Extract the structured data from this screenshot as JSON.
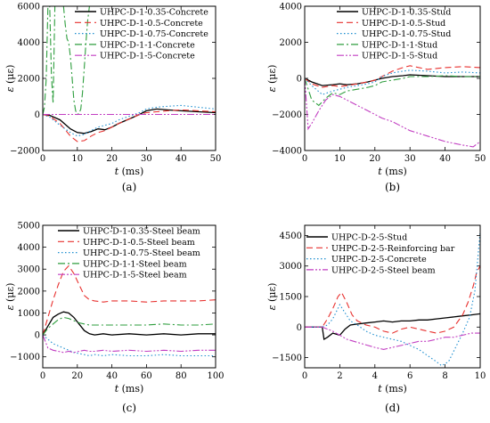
{
  "chart_data": [
    {
      "type": "line",
      "panel_label": "(a)",
      "xlabel_var": "t",
      "xlabel_unit": " (ms)",
      "ylabel_var": "ε",
      "ylabel_unit": " (με)",
      "xlim": [
        0,
        50
      ],
      "ylim": [
        -2000,
        6000
      ],
      "xticks": [
        0,
        10,
        20,
        30,
        40,
        50
      ],
      "yticks": [
        -2000,
        0,
        2000,
        4000,
        6000
      ],
      "legend_position": "top-right",
      "series": [
        {
          "name": "UHPC-D-1-0.35-Concrete",
          "color": "#000000",
          "dash": "solid",
          "x": [
            0,
            2,
            5,
            8,
            10,
            12,
            14,
            16,
            18,
            20,
            22,
            25,
            28,
            30,
            33,
            36,
            40,
            45,
            50
          ],
          "y": [
            0,
            -50,
            -300,
            -800,
            -1000,
            -1050,
            -950,
            -800,
            -850,
            -700,
            -500,
            -250,
            0,
            200,
            300,
            250,
            200,
            150,
            100
          ]
        },
        {
          "name": "UHPC-D-1-0.5-Concrete",
          "color": "#e8312f",
          "dash": "dash",
          "x": [
            0,
            2,
            5,
            8,
            10,
            12,
            14,
            16,
            18,
            20,
            22,
            25,
            28,
            30,
            33,
            36,
            40,
            45,
            50
          ],
          "y": [
            0,
            -100,
            -500,
            -1200,
            -1500,
            -1450,
            -1200,
            -1000,
            -900,
            -700,
            -500,
            -250,
            0,
            100,
            150,
            200,
            250,
            200,
            150
          ]
        },
        {
          "name": "UHPC-D-1-0.75-Concrete",
          "color": "#1f8fd0",
          "dash": "dot",
          "x": [
            0,
            2,
            5,
            8,
            10,
            12,
            14,
            16,
            18,
            20,
            22,
            25,
            28,
            30,
            33,
            36,
            40,
            45,
            50
          ],
          "y": [
            0,
            -150,
            -600,
            -1000,
            -1200,
            -1100,
            -900,
            -700,
            -600,
            -500,
            -300,
            -100,
            100,
            300,
            400,
            450,
            500,
            400,
            300
          ]
        },
        {
          "name": "UHPC-D-1-1-Concrete",
          "color": "#2e9e3e",
          "dash": "dashdot",
          "x": [
            0,
            0.5,
            1,
            1.5,
            2,
            2.5,
            3,
            3.5,
            4,
            4.5,
            5,
            5.5,
            6,
            6.5,
            7,
            7.5,
            8,
            8.5,
            9,
            9.5,
            10,
            10.5,
            11,
            11.5,
            12,
            12.5,
            13,
            13.5,
            14
          ],
          "y": [
            0,
            400,
            2000,
            6000,
            6000,
            2200,
            600,
            6000,
            6000,
            6000,
            6000,
            6000,
            6000,
            5000,
            4200,
            4000,
            3200,
            2000,
            800,
            200,
            0,
            50,
            300,
            1200,
            2600,
            4000,
            5200,
            6000,
            6000
          ]
        },
        {
          "name": "UHPC-D-1-5-Concrete",
          "color": "#c23fc2",
          "dash": "dashdotdot",
          "x": [
            0,
            10,
            20,
            30,
            40,
            50
          ],
          "y": [
            0,
            0,
            0,
            0,
            0,
            0
          ]
        }
      ]
    },
    {
      "type": "line",
      "panel_label": "(b)",
      "xlabel_var": "t",
      "xlabel_unit": " (ms)",
      "ylabel_var": "ε",
      "ylabel_unit": " (με)",
      "xlim": [
        0,
        50
      ],
      "ylim": [
        -4000,
        4000
      ],
      "xticks": [
        0,
        10,
        20,
        30,
        40,
        50
      ],
      "yticks": [
        -4000,
        -2000,
        0,
        2000,
        4000
      ],
      "legend_position": "top-right",
      "series": [
        {
          "name": "UHPC-D-1-0.35-Stud",
          "color": "#000000",
          "dash": "solid",
          "x": [
            0,
            2,
            5,
            8,
            10,
            12,
            15,
            18,
            20,
            22,
            25,
            28,
            30,
            35,
            40,
            45,
            50
          ],
          "y": [
            0,
            -200,
            -400,
            -350,
            -300,
            -350,
            -300,
            -200,
            -100,
            0,
            100,
            150,
            200,
            150,
            100,
            100,
            100
          ]
        },
        {
          "name": "UHPC-D-1-0.5-Stud",
          "color": "#e8312f",
          "dash": "dash",
          "x": [
            0,
            2,
            5,
            8,
            10,
            12,
            15,
            18,
            20,
            22,
            25,
            28,
            30,
            35,
            40,
            45,
            50
          ],
          "y": [
            0,
            -300,
            -500,
            -400,
            -450,
            -400,
            -300,
            -200,
            -100,
            100,
            400,
            600,
            700,
            500,
            600,
            650,
            600
          ]
        },
        {
          "name": "UHPC-D-1-0.75-Stud",
          "color": "#1f8fd0",
          "dash": "dot",
          "x": [
            0,
            2,
            5,
            8,
            10,
            12,
            15,
            18,
            20,
            22,
            25,
            28,
            30,
            35,
            40,
            45,
            50
          ],
          "y": [
            0,
            -400,
            -900,
            -700,
            -600,
            -500,
            -400,
            -300,
            -200,
            100,
            300,
            400,
            450,
            400,
            300,
            350,
            300
          ]
        },
        {
          "name": "UHPC-D-1-1-Stud",
          "color": "#2e9e3e",
          "dash": "dashdot",
          "x": [
            0,
            2,
            4,
            6,
            8,
            10,
            12,
            15,
            18,
            20,
            22,
            25,
            28,
            30,
            35,
            40,
            45,
            50
          ],
          "y": [
            0,
            -1200,
            -1500,
            -1100,
            -800,
            -900,
            -700,
            -600,
            -500,
            -400,
            -200,
            -100,
            0,
            100,
            100,
            150,
            100,
            100
          ]
        },
        {
          "name": "UHPC-D-1-5-Stud",
          "color": "#c23fc2",
          "dash": "dashdotdot",
          "x": [
            0,
            1,
            2,
            4,
            6,
            8,
            10,
            12,
            15,
            18,
            20,
            22,
            25,
            28,
            30,
            35,
            40,
            45,
            48,
            50
          ],
          "y": [
            0,
            -2800,
            -2500,
            -1800,
            -1200,
            -900,
            -1000,
            -1200,
            -1500,
            -1800,
            -2000,
            -2200,
            -2400,
            -2700,
            -2900,
            -3200,
            -3500,
            -3700,
            -3800,
            -3500
          ]
        }
      ]
    },
    {
      "type": "line",
      "panel_label": "(c)",
      "xlabel_var": "t",
      "xlabel_unit": " (ms)",
      "ylabel_var": "ε",
      "ylabel_unit": " (με)",
      "xlim": [
        0,
        100
      ],
      "ylim": [
        -1500,
        5000
      ],
      "xticks": [
        0,
        20,
        40,
        60,
        80,
        100
      ],
      "yticks": [
        -1000,
        0,
        1000,
        2000,
        3000,
        4000,
        5000
      ],
      "legend_position": "top-right",
      "series": [
        {
          "name": "UHPC-D-1-0.35-Steel beam",
          "color": "#000000",
          "dash": "solid",
          "x": [
            0,
            3,
            6,
            9,
            12,
            15,
            18,
            21,
            24,
            27,
            30,
            35,
            40,
            50,
            60,
            70,
            80,
            90,
            100
          ],
          "y": [
            0,
            400,
            800,
            950,
            1050,
            1000,
            800,
            500,
            200,
            50,
            0,
            50,
            0,
            50,
            0,
            50,
            0,
            50,
            50
          ]
        },
        {
          "name": "UHPC-D-1-0.5-Steel beam",
          "color": "#e8312f",
          "dash": "dash",
          "x": [
            0,
            3,
            6,
            9,
            12,
            15,
            18,
            21,
            24,
            27,
            30,
            35,
            40,
            50,
            60,
            70,
            80,
            90,
            100
          ],
          "y": [
            0,
            800,
            1600,
            2300,
            2900,
            3150,
            2800,
            2300,
            1800,
            1600,
            1550,
            1500,
            1550,
            1550,
            1500,
            1550,
            1550,
            1550,
            1600
          ]
        },
        {
          "name": "UHPC-D-1-0.75-Steel beam",
          "color": "#1f8fd0",
          "dash": "dot",
          "x": [
            0,
            3,
            6,
            9,
            12,
            15,
            18,
            21,
            24,
            27,
            30,
            35,
            40,
            50,
            60,
            70,
            80,
            90,
            100
          ],
          "y": [
            0,
            -200,
            -400,
            -500,
            -600,
            -700,
            -800,
            -850,
            -900,
            -950,
            -900,
            -950,
            -900,
            -950,
            -950,
            -900,
            -950,
            -950,
            -950
          ]
        },
        {
          "name": "UHPC-D-1-1-Steel beam",
          "color": "#2e9e3e",
          "dash": "dashdot",
          "x": [
            0,
            3,
            6,
            9,
            12,
            15,
            18,
            21,
            24,
            27,
            30,
            35,
            40,
            50,
            60,
            70,
            80,
            90,
            100
          ],
          "y": [
            0,
            300,
            500,
            700,
            800,
            750,
            650,
            550,
            500,
            450,
            450,
            450,
            450,
            450,
            450,
            500,
            450,
            450,
            500
          ]
        },
        {
          "name": "UHPC-D-1-5-Steel beam",
          "color": "#c23fc2",
          "dash": "dashdotdot",
          "x": [
            0,
            3,
            6,
            9,
            12,
            15,
            18,
            21,
            24,
            27,
            30,
            35,
            40,
            50,
            60,
            70,
            80,
            90,
            100
          ],
          "y": [
            0,
            -600,
            -700,
            -750,
            -800,
            -750,
            -800,
            -750,
            -700,
            -750,
            -750,
            -700,
            -750,
            -700,
            -750,
            -700,
            -750,
            -700,
            -700
          ]
        }
      ]
    },
    {
      "type": "line",
      "panel_label": "(d)",
      "xlabel_var": "t",
      "xlabel_unit": " (ms)",
      "ylabel_var": "ε",
      "ylabel_unit": " (με)",
      "xlim": [
        0,
        10
      ],
      "ylim": [
        -2000,
        5000
      ],
      "xticks": [
        0,
        2,
        4,
        6,
        8,
        10
      ],
      "yticks": [
        -1500,
        0,
        1500,
        3000,
        4500
      ],
      "legend_position": "top-right",
      "series": [
        {
          "name": "UHPC-D-2-5-Stud",
          "color": "#000000",
          "dash": "solid",
          "x": [
            0,
            0.5,
            1.0,
            1.1,
            1.3,
            1.6,
            2.0,
            2.3,
            2.6,
            3.0,
            3.5,
            4.0,
            4.5,
            5.0,
            5.5,
            6.0,
            6.5,
            7.0,
            7.5,
            8.0,
            8.5,
            9.0,
            9.5,
            10.0
          ],
          "y": [
            0,
            0,
            0,
            -600,
            -500,
            -300,
            -400,
            -100,
            100,
            150,
            200,
            250,
            300,
            250,
            300,
            300,
            350,
            350,
            400,
            450,
            500,
            550,
            600,
            650
          ]
        },
        {
          "name": "UHPC-D-2-5-Reinforcing bar",
          "color": "#e8312f",
          "dash": "dash",
          "x": [
            0,
            0.5,
            1.0,
            1.3,
            1.6,
            1.9,
            2.1,
            2.4,
            2.7,
            3.0,
            3.5,
            4.0,
            4.5,
            5.0,
            5.5,
            6.0,
            6.5,
            7.0,
            7.5,
            8.0,
            8.5,
            9.0,
            9.3,
            9.6,
            9.8,
            10.0
          ],
          "y": [
            0,
            0,
            0,
            400,
            900,
            1500,
            1700,
            1200,
            600,
            300,
            100,
            0,
            -200,
            -300,
            -100,
            0,
            -100,
            -200,
            -300,
            -200,
            0,
            600,
            1200,
            2000,
            2700,
            3000
          ]
        },
        {
          "name": "UHPC-D-2-5-Concrete",
          "color": "#1f8fd0",
          "dash": "dot",
          "x": [
            0,
            0.5,
            1.0,
            1.3,
            1.6,
            2.0,
            2.3,
            2.6,
            3.0,
            3.5,
            4.0,
            4.5,
            5.0,
            5.5,
            6.0,
            6.5,
            7.0,
            7.5,
            7.8,
            8.2,
            8.6,
            9.0,
            9.4,
            9.7,
            10.0
          ],
          "y": [
            0,
            0,
            0,
            100,
            400,
            1100,
            700,
            300,
            100,
            -200,
            -400,
            -500,
            -600,
            -700,
            -900,
            -1100,
            -1400,
            -1700,
            -1900,
            -1700,
            -1000,
            -300,
            500,
            1800,
            4700
          ]
        },
        {
          "name": "UHPC-D-2-5-Steel beam",
          "color": "#c23fc2",
          "dash": "dashdotdot",
          "x": [
            0,
            0.5,
            1.0,
            1.3,
            1.6,
            2.0,
            2.4,
            2.8,
            3.2,
            3.6,
            4.0,
            4.5,
            5.0,
            5.5,
            6.0,
            6.5,
            7.0,
            7.5,
            8.0,
            8.5,
            9.0,
            9.5,
            10.0
          ],
          "y": [
            0,
            0,
            0,
            -100,
            -200,
            -400,
            -600,
            -700,
            -800,
            -900,
            -1000,
            -1100,
            -1000,
            -900,
            -800,
            -700,
            -700,
            -600,
            -500,
            -500,
            -400,
            -300,
            -300
          ]
        }
      ]
    }
  ]
}
